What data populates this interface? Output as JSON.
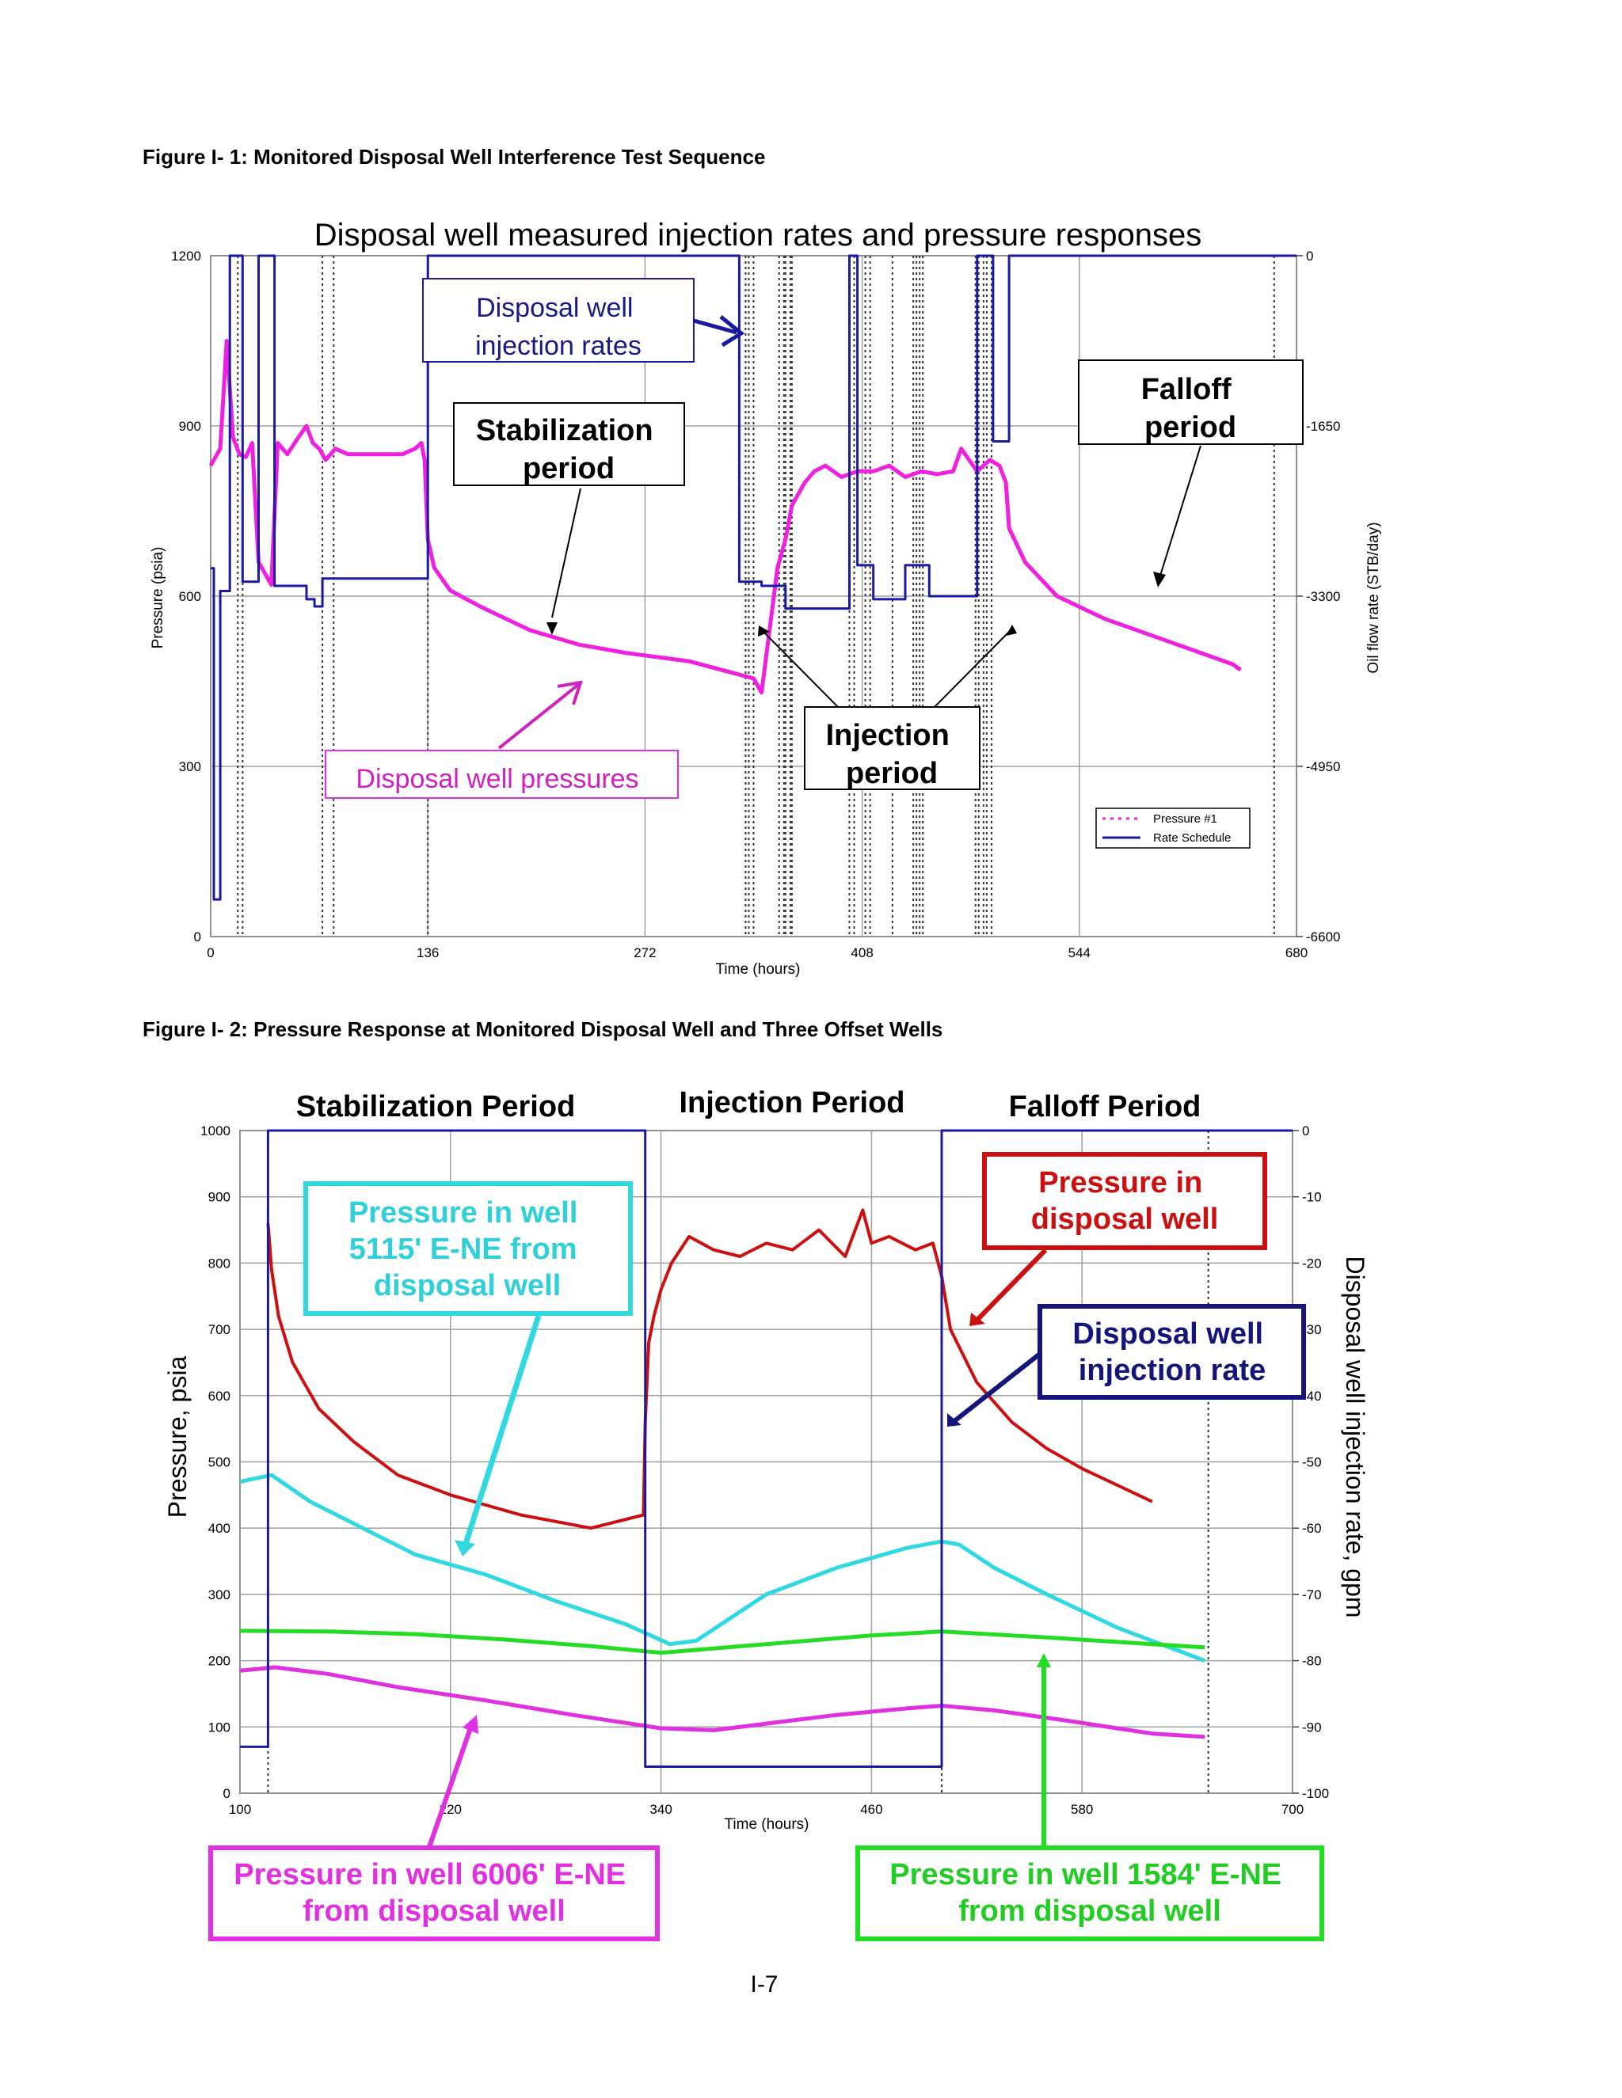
{
  "captions": {
    "fig1": "Figure I- 1:  Monitored Disposal Well Interference Test Sequence",
    "fig2": "Figure I- 2:  Pressure Response at Monitored Disposal Well and Three Offset Wells"
  },
  "page_number": "I-7",
  "colors": {
    "pressure_magenta": "#f020e0",
    "rate_blue": "#1a1aa0",
    "red": "#cc1010",
    "cyan": "#30d8e0",
    "green": "#22dd22",
    "purple": "#e030e0",
    "navy": "#14147a",
    "grid": "#a0a0a0"
  },
  "chart_data": [
    {
      "type": "line",
      "title": "Disposal well measured injection rates and pressure responses",
      "xlabel": "Time (hours)",
      "ylabel": "Pressure (psia)",
      "y2label": "Oil flow rate (STB/day)",
      "xlim": [
        0,
        680
      ],
      "ylim": [
        0,
        1200
      ],
      "y2lim": [
        0,
        -6600
      ],
      "xticks": [
        "0",
        "136",
        "272",
        "408",
        "544",
        "680"
      ],
      "yticks": [
        "0",
        "300",
        "600",
        "900",
        "1200"
      ],
      "y2ticks": [
        "0",
        "-1650",
        "-3300",
        "-4950",
        "-6600"
      ],
      "legend": {
        "position": "bottom-right",
        "entries": [
          "Pressure #1",
          "Rate Schedule"
        ]
      },
      "annotations": [
        "Disposal well injection rates",
        "Stabilization period",
        "Falloff period",
        "Injection period",
        "Disposal well pressures"
      ],
      "series": [
        {
          "name": "Pressure #1",
          "x": [
            0,
            6,
            10,
            14,
            18,
            22,
            26,
            30,
            34,
            38,
            42,
            48,
            55,
            60,
            64,
            68,
            72,
            78,
            86,
            95,
            120,
            128,
            132,
            134,
            136,
            140,
            150,
            170,
            200,
            230,
            260,
            300,
            340,
            345,
            355,
            360,
            364,
            368,
            372,
            378,
            385,
            395,
            405,
            415,
            425,
            435,
            445,
            455,
            465,
            470,
            480,
            488,
            494,
            498,
            500,
            510,
            530,
            560,
            600,
            640,
            645
          ],
          "y": [
            830,
            860,
            1050,
            880,
            850,
            845,
            870,
            660,
            640,
            620,
            870,
            850,
            880,
            900,
            870,
            860,
            840,
            860,
            850,
            850,
            850,
            860,
            870,
            840,
            700,
            650,
            610,
            580,
            540,
            515,
            500,
            485,
            455,
            430,
            650,
            700,
            760,
            780,
            800,
            820,
            830,
            810,
            820,
            820,
            830,
            810,
            820,
            815,
            820,
            860,
            820,
            840,
            830,
            800,
            720,
            660,
            600,
            560,
            520,
            480,
            470
          ]
        },
        {
          "name": "Rate Schedule",
          "x": [
            0,
            2,
            2,
            6,
            6,
            12,
            12,
            20,
            20,
            30,
            30,
            40,
            40,
            60,
            60,
            65,
            65,
            70,
            70,
            80,
            80,
            136,
            136,
            331,
            331,
            345,
            345,
            360,
            360,
            400,
            400,
            405,
            405,
            415,
            415,
            435,
            435,
            450,
            450,
            480,
            480,
            490,
            490,
            500,
            500,
            680
          ],
          "y": [
            -3030,
            -3030,
            -6240,
            -6240,
            -3250,
            -3250,
            0,
            0,
            -3160,
            -3160,
            0,
            0,
            -3200,
            -3200,
            -3330,
            -3330,
            -3400,
            -3400,
            -3130,
            -3130,
            -3130,
            -3130,
            0,
            0,
            -3160,
            -3160,
            -3200,
            -3200,
            -3420,
            -3420,
            0,
            0,
            -3000,
            -3000,
            -3330,
            -3330,
            -3000,
            -3000,
            -3300,
            -3300,
            0,
            0,
            -1800,
            -1800,
            0,
            0
          ]
        }
      ]
    },
    {
      "type": "line",
      "xlabel": "Time (hours)",
      "ylabel": "Pressure, psia",
      "y2label": "Disposal well injection rate, gpm",
      "xlim": [
        100,
        700
      ],
      "ylim": [
        0,
        1000
      ],
      "y2lim": [
        0,
        -100
      ],
      "xticks": [
        "100",
        "220",
        "340",
        "460",
        "580",
        "700"
      ],
      "yticks": [
        "0",
        "100",
        "200",
        "300",
        "400",
        "500",
        "600",
        "700",
        "800",
        "900",
        "1000"
      ],
      "y2ticks": [
        "0",
        "-10",
        "-20",
        "-30",
        "-40",
        "-50",
        "-60",
        "-70",
        "-80",
        "-90",
        "-100"
      ],
      "period_labels": [
        "Stabilization Period",
        "Injection Period",
        "Falloff Period"
      ],
      "annotations": [
        "Pressure in well 5115' E-NE from disposal well",
        "Pressure in disposal well",
        "Disposal well injection rate",
        "Pressure in well 6006' E-NE from disposal well",
        "Pressure in well 1584' E-NE from disposal well"
      ],
      "series": [
        {
          "name": "Pressure in disposal well",
          "x": [
            116,
            118,
            122,
            130,
            145,
            165,
            190,
            220,
            260,
            300,
            330,
            331,
            333,
            336,
            340,
            346,
            356,
            370,
            385,
            400,
            415,
            430,
            445,
            455,
            460,
            470,
            485,
            495,
            500,
            505,
            520,
            540,
            560,
            580,
            620
          ],
          "y": [
            860,
            790,
            720,
            650,
            580,
            530,
            480,
            450,
            420,
            400,
            420,
            560,
            680,
            720,
            760,
            800,
            840,
            820,
            810,
            830,
            820,
            850,
            810,
            880,
            830,
            840,
            820,
            830,
            780,
            700,
            620,
            560,
            520,
            490,
            440
          ]
        },
        {
          "name": "Pressure in well 5115' E-NE",
          "x": [
            100,
            118,
            140,
            170,
            200,
            240,
            280,
            320,
            345,
            360,
            380,
            400,
            420,
            440,
            460,
            480,
            500,
            510,
            530,
            560,
            600,
            650
          ],
          "y": [
            470,
            480,
            440,
            400,
            360,
            330,
            290,
            255,
            225,
            230,
            265,
            300,
            320,
            340,
            355,
            370,
            380,
            375,
            340,
            300,
            250,
            200
          ]
        },
        {
          "name": "Pressure in well 1584' E-NE",
          "x": [
            100,
            150,
            200,
            250,
            300,
            340,
            400,
            460,
            500,
            560,
            620,
            650
          ],
          "y": [
            245,
            244,
            240,
            232,
            222,
            212,
            225,
            238,
            244,
            235,
            225,
            220
          ]
        },
        {
          "name": "Pressure in well 6006' E-NE",
          "x": [
            100,
            120,
            150,
            190,
            240,
            290,
            340,
            370,
            400,
            440,
            480,
            500,
            530,
            570,
            620,
            650
          ],
          "y": [
            185,
            190,
            180,
            160,
            140,
            118,
            98,
            95,
            105,
            118,
            128,
            132,
            125,
            110,
            90,
            85
          ]
        },
        {
          "name": "Disposal well injection rate",
          "x": [
            100,
            116,
            116,
            331,
            331,
            500,
            500,
            700
          ],
          "y": [
            -93,
            -93,
            0,
            0,
            -96,
            -96,
            0,
            0
          ]
        }
      ]
    }
  ]
}
